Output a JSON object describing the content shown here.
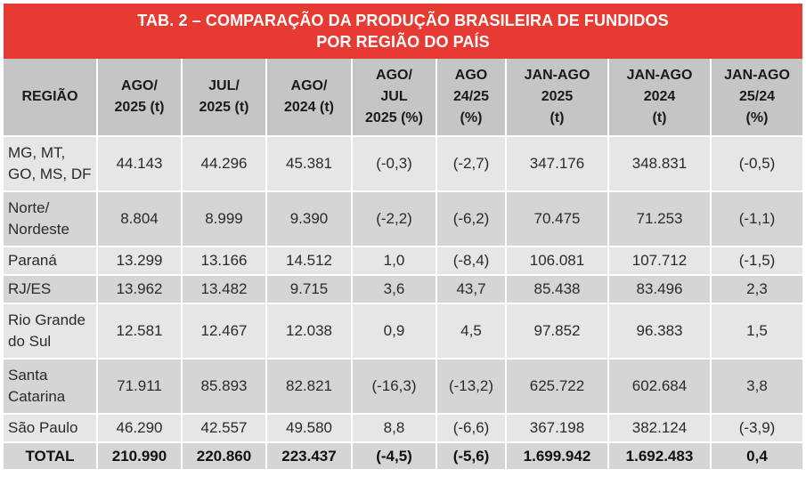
{
  "table": {
    "title_line1": "TAB. 2 – COMPARAÇÃO DA PRODUÇÃO BRASILEIRA DE FUNDIDOS",
    "title_line2": "POR REGIÃO DO PAÍS",
    "headers": [
      [
        "REGIÃO"
      ],
      [
        "AGO/",
        "2025 (t)"
      ],
      [
        "JUL/",
        "2025 (t)"
      ],
      [
        "AGO/",
        "2024 (t)"
      ],
      [
        "AGO/",
        "JUL",
        "2025 (%)"
      ],
      [
        "AGO",
        "24/25",
        "(%)"
      ],
      [
        "JAN-AGO",
        "2025",
        "(t)"
      ],
      [
        "JAN-AGO",
        "2024",
        "(t)"
      ],
      [
        "JAN-AGO",
        "25/24",
        "(%)"
      ]
    ],
    "rows": [
      {
        "region": [
          "MG, MT,",
          "GO, MS, DF"
        ],
        "values": [
          "44.143",
          "44.296",
          "45.381",
          "(-0,3)",
          "(-2,7)",
          "347.176",
          "348.831",
          "(-0,5)"
        ]
      },
      {
        "region": [
          "Norte/",
          "Nordeste"
        ],
        "values": [
          "8.804",
          "8.999",
          "9.390",
          "(-2,2)",
          "(-6,2)",
          "70.475",
          "71.253",
          "(-1,1)"
        ]
      },
      {
        "region": [
          "Paraná"
        ],
        "values": [
          "13.299",
          "13.166",
          "14.512",
          "1,0",
          "(-8,4)",
          "106.081",
          "107.712",
          "(-1,5)"
        ]
      },
      {
        "region": [
          "RJ/ES"
        ],
        "values": [
          "13.962",
          "13.482",
          "9.715",
          "3,6",
          "43,7",
          "85.438",
          "83.496",
          "2,3"
        ]
      },
      {
        "region": [
          "Rio Grande",
          "do Sul"
        ],
        "values": [
          "12.581",
          "12.467",
          "12.038",
          "0,9",
          "4,5",
          "97.852",
          "96.383",
          "1,5"
        ]
      },
      {
        "region": [
          "Santa",
          "Catarina"
        ],
        "values": [
          "71.911",
          "85.893",
          "82.821",
          "(-16,3)",
          "(-13,2)",
          "625.722",
          "602.684",
          "3,8"
        ]
      },
      {
        "region": [
          "São Paulo"
        ],
        "values": [
          "46.290",
          "42.557",
          "49.580",
          "8,8",
          "(-6,6)",
          "367.198",
          "382.124",
          "(-3,9)"
        ]
      }
    ],
    "total": {
      "region": "TOTAL",
      "values": [
        "210.990",
        "220.860",
        "223.437",
        "(-4,5)",
        "(-5,6)",
        "1.699.942",
        "1.692.483",
        "0,4"
      ]
    }
  },
  "colors": {
    "title_background": "#e63a32",
    "header_background": "#c5c5c5",
    "row_light": "#e6e6e6",
    "row_dark": "#d5d5d5"
  }
}
